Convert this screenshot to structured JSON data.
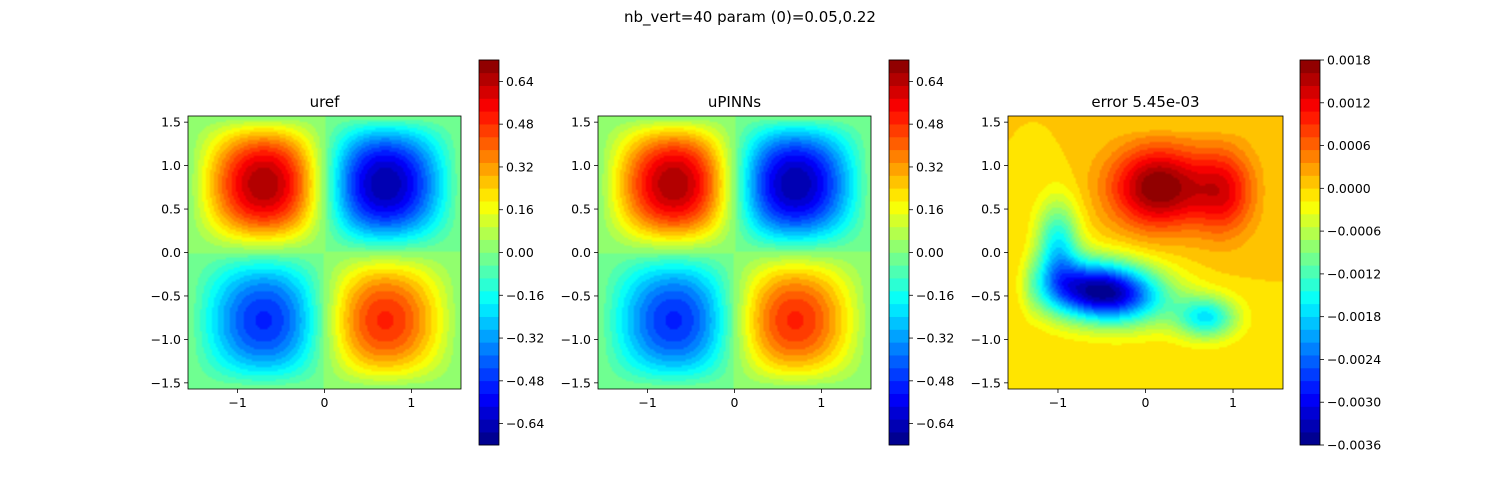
{
  "figure_title": "nb_vert=40 param (0)=0.05,0.22",
  "chart_data": [
    {
      "type": "heatmap",
      "title": "uref",
      "field": "reference",
      "xlim": [
        -1.5708,
        1.5708
      ],
      "ylim": [
        -1.5708,
        1.5708
      ],
      "xticks": [
        -1,
        0,
        1
      ],
      "yticks": [
        -1.5,
        -1.0,
        -0.5,
        0.0,
        0.5,
        1.0,
        1.5
      ],
      "colormap": "jet",
      "levels": 30,
      "colorbar": {
        "min": -0.72,
        "max": 0.72,
        "ticks": [
          -0.64,
          -0.48,
          -0.32,
          -0.16,
          0.0,
          0.16,
          0.32,
          0.48,
          0.64
        ]
      }
    },
    {
      "type": "heatmap",
      "title": "uPINNs",
      "field": "prediction",
      "xlim": [
        -1.5708,
        1.5708
      ],
      "ylim": [
        -1.5708,
        1.5708
      ],
      "xticks": [
        -1,
        0,
        1
      ],
      "yticks": [
        -1.5,
        -1.0,
        -0.5,
        0.0,
        0.5,
        1.0,
        1.5
      ],
      "colormap": "jet",
      "levels": 30,
      "colorbar": {
        "min": -0.72,
        "max": 0.72,
        "ticks": [
          -0.64,
          -0.48,
          -0.32,
          -0.16,
          0.0,
          0.16,
          0.32,
          0.48,
          0.64
        ]
      }
    },
    {
      "type": "heatmap",
      "title": "error 5.45e-03",
      "field": "error",
      "xlim": [
        -1.5708,
        1.5708
      ],
      "ylim": [
        -1.5708,
        1.5708
      ],
      "xticks": [
        -1,
        0,
        1
      ],
      "yticks": [
        -1.5,
        -1.0,
        -0.5,
        0.0,
        0.5,
        1.0,
        1.5
      ],
      "colormap": "jet",
      "levels": 30,
      "colorbar": {
        "min": -0.0036,
        "max": 0.0018,
        "ticks": [
          -0.0036,
          -0.003,
          -0.0024,
          -0.0018,
          -0.0012,
          -0.0006,
          0.0,
          0.0006,
          0.0012,
          0.0018
        ]
      }
    }
  ]
}
